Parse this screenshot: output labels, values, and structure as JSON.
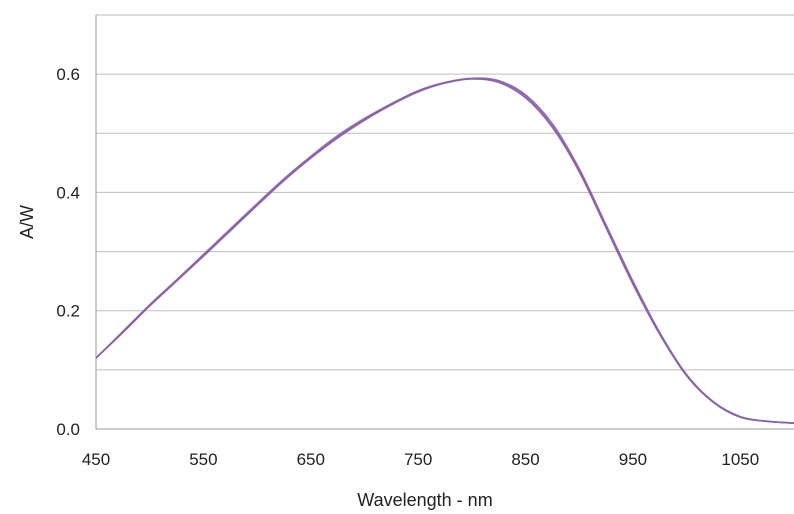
{
  "chart_data": {
    "type": "line",
    "title": "",
    "xlabel": "Wavelength - nm",
    "ylabel": "A/W",
    "xlim": [
      450,
      1100
    ],
    "ylim": [
      0,
      0.7
    ],
    "x_ticks": [
      450,
      550,
      650,
      750,
      850,
      950,
      1050
    ],
    "x_tick_labels": [
      "450",
      "550",
      "650",
      "750",
      "850",
      "950",
      "1050"
    ],
    "y_ticks": [
      0,
      0.1,
      0.2,
      0.3,
      0.4,
      0.5,
      0.6,
      0.7
    ],
    "y_tick_labels": [
      "0.0",
      "",
      "0.2",
      "",
      "0.4",
      "",
      "0.6",
      ""
    ],
    "grid": "horizontal",
    "legend": "none",
    "series_color": "#8b5fa8",
    "series": [
      {
        "x": [
          450,
          475,
          500,
          525,
          550,
          575,
          600,
          625,
          650,
          675,
          700,
          725,
          750,
          775,
          800,
          825,
          850,
          875,
          900,
          925,
          950,
          975,
          1000,
          1025,
          1050,
          1075,
          1100
        ],
        "values": [
          0.12,
          0.163,
          0.208,
          0.25,
          0.292,
          0.335,
          0.378,
          0.42,
          0.458,
          0.492,
          0.522,
          0.548,
          0.57,
          0.585,
          0.592,
          0.586,
          0.56,
          0.51,
          0.435,
          0.34,
          0.245,
          0.16,
          0.09,
          0.045,
          0.02,
          0.013,
          0.01
        ]
      },
      {
        "x": [
          450,
          475,
          500,
          525,
          550,
          575,
          600,
          625,
          650,
          675,
          700,
          725,
          750,
          775,
          800,
          825,
          850,
          875,
          900,
          925,
          950,
          975,
          1000,
          1025,
          1050,
          1075,
          1100
        ],
        "values": [
          0.12,
          0.165,
          0.21,
          0.252,
          0.295,
          0.338,
          0.381,
          0.423,
          0.461,
          0.496,
          0.525,
          0.55,
          0.572,
          0.586,
          0.593,
          0.589,
          0.565,
          0.516,
          0.44,
          0.345,
          0.25,
          0.163,
          0.092,
          0.046,
          0.021,
          0.013,
          0.01
        ]
      },
      {
        "x": [
          450,
          475,
          500,
          525,
          550,
          575,
          600,
          625,
          650,
          675,
          700,
          725,
          750,
          775,
          800,
          825,
          850,
          875,
          900,
          925,
          950,
          975,
          1000,
          1025,
          1050,
          1075,
          1100
        ],
        "values": [
          0.12,
          0.164,
          0.209,
          0.251,
          0.293,
          0.336,
          0.379,
          0.421,
          0.459,
          0.494,
          0.523,
          0.549,
          0.571,
          0.585,
          0.592,
          0.587,
          0.562,
          0.512,
          0.437,
          0.342,
          0.247,
          0.161,
          0.091,
          0.045,
          0.02,
          0.013,
          0.01
        ]
      }
    ]
  }
}
